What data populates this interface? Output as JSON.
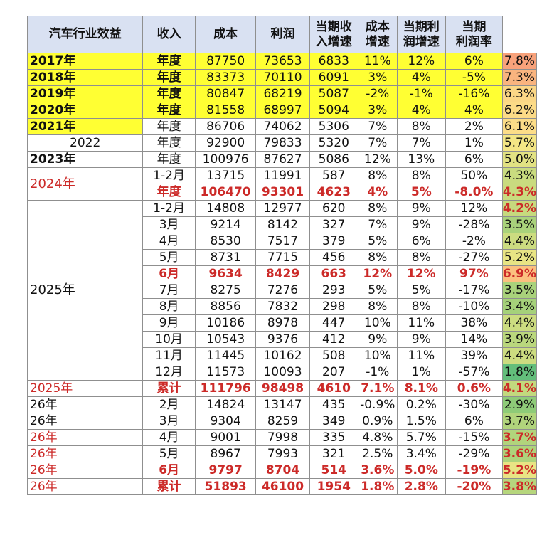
{
  "headers": [
    "汽车行业效益",
    "收入",
    "成本",
    "利润",
    "当期收入增速",
    "成本增速",
    "当期利润增速",
    "当期利润率"
  ],
  "header_lines": [
    [
      "汽车行业效益"
    ],
    [
      "收入"
    ],
    [
      "成本"
    ],
    [
      "利润"
    ],
    [
      "当期收",
      "入增速"
    ],
    [
      "成本",
      "增速"
    ],
    [
      "当期利",
      "润增速"
    ],
    [
      "当期",
      "利润率"
    ]
  ],
  "rows": [
    {
      "year": "2017年",
      "period": "年度",
      "revenue": "87750",
      "cost": "73653",
      "profit": "6833",
      "rev_growth": "11%",
      "cost_growth": "12%",
      "profit_growth": "6%",
      "margin": "7.8%",
      "style": "hl",
      "yearStyle": "hl",
      "marginColor": "#f8a27b"
    },
    {
      "year": "2018年",
      "period": "年度",
      "revenue": "83373",
      "cost": "70110",
      "profit": "6091",
      "rev_growth": "3%",
      "cost_growth": "4%",
      "profit_growth": "-5%",
      "margin": "7.3%",
      "style": "hl",
      "yearStyle": "hl",
      "marginColor": "#f9b47f"
    },
    {
      "year": "2019年",
      "period": "年度",
      "revenue": "80847",
      "cost": "68219",
      "profit": "5087",
      "rev_growth": "-2%",
      "cost_growth": "-1%",
      "profit_growth": "-16%",
      "margin": "6.3%",
      "style": "hl",
      "yearStyle": "hl",
      "marginColor": "#fbd786"
    },
    {
      "year": "2020年",
      "period": "年度",
      "revenue": "81558",
      "cost": "68997",
      "profit": "5094",
      "rev_growth": "3%",
      "cost_growth": "4%",
      "profit_growth": "4%",
      "margin": "6.2%",
      "style": "hl",
      "yearStyle": "hl",
      "marginColor": "#fcdb87"
    },
    {
      "year": "2021年",
      "period": "年度",
      "revenue": "86706",
      "cost": "74062",
      "profit": "5306",
      "rev_growth": "7%",
      "cost_growth": "8%",
      "profit_growth": "2%",
      "margin": "6.1%",
      "style": "",
      "yearStyle": "hl",
      "marginColor": "#fcdd88"
    },
    {
      "year": "2022",
      "period": "年度",
      "revenue": "92900",
      "cost": "79833",
      "profit": "5320",
      "rev_growth": "7%",
      "cost_growth": "7%",
      "profit_growth": "1%",
      "margin": "5.7%",
      "style": "",
      "yearStyle": "center",
      "marginColor": "#f4e685"
    },
    {
      "year": "2023年",
      "period": "年度",
      "revenue": "100976",
      "cost": "87627",
      "profit": "5086",
      "rev_growth": "12%",
      "cost_growth": "13%",
      "profit_growth": "6%",
      "margin": "5.0%",
      "style": "",
      "yearStyle": "",
      "marginColor": "#e2e283"
    },
    {
      "period": "1-2月",
      "revenue": "13715",
      "cost": "11991",
      "profit": "587",
      "rev_growth": "8%",
      "cost_growth": "8%",
      "profit_growth": "50%",
      "margin": "4.3%",
      "style": "",
      "marginColor": "#c9db7f"
    },
    {
      "period": "年度",
      "revenue": "106470",
      "cost": "93301",
      "profit": "4623",
      "rev_growth": "4%",
      "cost_growth": "5%",
      "profit_growth": "-8.0%",
      "margin": "4.3%",
      "style": "red",
      "marginColor": "#c9db7f"
    },
    {
      "period": "1-2月",
      "revenue": "14808",
      "cost": "12977",
      "profit": "620",
      "rev_growth": "8%",
      "cost_growth": "9%",
      "profit_growth": "12%",
      "margin": "4.2%",
      "style": "",
      "marginColor": "#c6da7e",
      "marginRed": true
    },
    {
      "period": "3月",
      "revenue": "9214",
      "cost": "8142",
      "profit": "327",
      "rev_growth": "7%",
      "cost_growth": "9%",
      "profit_growth": "-28%",
      "margin": "3.5%",
      "style": "",
      "marginColor": "#a9d27b"
    },
    {
      "period": "4月",
      "revenue": "8530",
      "cost": "7517",
      "profit": "379",
      "rev_growth": "5%",
      "cost_growth": "6%",
      "profit_growth": "-2%",
      "margin": "4.4%",
      "style": "",
      "marginColor": "#ccdc80"
    },
    {
      "period": "5月",
      "revenue": "8731",
      "cost": "7715",
      "profit": "456",
      "rev_growth": "8%",
      "cost_growth": "8%",
      "profit_growth": "-27%",
      "margin": "5.2%",
      "style": "",
      "marginColor": "#e8e484"
    },
    {
      "period": "6月",
      "revenue": "9634",
      "cost": "8429",
      "profit": "663",
      "rev_growth": "12%",
      "cost_growth": "12%",
      "profit_growth": "97%",
      "margin": "6.9%",
      "style": "red",
      "marginColor": "#fbc07f",
      "marginDark": true
    },
    {
      "period": "7月",
      "revenue": "8275",
      "cost": "7276",
      "profit": "293",
      "rev_growth": "5%",
      "cost_growth": "5%",
      "profit_growth": "-17%",
      "margin": "3.5%",
      "style": "",
      "marginColor": "#a9d27b"
    },
    {
      "period": "8月",
      "revenue": "8856",
      "cost": "7832",
      "profit": "298",
      "rev_growth": "8%",
      "cost_growth": "8%",
      "profit_growth": "-10%",
      "margin": "3.4%",
      "style": "",
      "marginColor": "#a5d17a"
    },
    {
      "period": "9月",
      "revenue": "10186",
      "cost": "8978",
      "profit": "447",
      "rev_growth": "10%",
      "cost_growth": "11%",
      "profit_growth": "38%",
      "margin": "4.4%",
      "style": "",
      "marginColor": "#ccdc80"
    },
    {
      "period": "10月",
      "revenue": "10543",
      "cost": "9376",
      "profit": "412",
      "rev_growth": "9%",
      "cost_growth": "9%",
      "profit_growth": "14%",
      "margin": "3.9%",
      "style": "",
      "marginColor": "#bad77d"
    },
    {
      "period": "11月",
      "revenue": "11445",
      "cost": "10162",
      "profit": "508",
      "rev_growth": "10%",
      "cost_growth": "11%",
      "profit_growth": "39%",
      "margin": "4.4%",
      "style": "",
      "marginColor": "#ccdc80"
    },
    {
      "period": "12月",
      "revenue": "11573",
      "cost": "10093",
      "profit": "207",
      "rev_growth": "-1%",
      "cost_growth": "1%",
      "profit_growth": "-57%",
      "margin": "1.8%",
      "style": "",
      "marginColor": "#63be7b"
    },
    {
      "year": "2025年",
      "period": "累计",
      "revenue": "111796",
      "cost": "98498",
      "profit": "4610",
      "rev_growth": "7.1%",
      "cost_growth": "8.1%",
      "profit_growth": "0.6%",
      "margin": "4.1%",
      "style": "red",
      "yearStyle": "redthin",
      "marginColor": "#c2d97e"
    },
    {
      "year": "26年",
      "period": "2月",
      "revenue": "14824",
      "cost": "13147",
      "profit": "435",
      "rev_growth": "-0.9%",
      "cost_growth": "0.2%",
      "profit_growth": "-30%",
      "margin": "2.9%",
      "style": "",
      "yearStyle": "",
      "marginColor": "#8ecb78"
    },
    {
      "year": "26年",
      "period": "3月",
      "revenue": "9304",
      "cost": "8259",
      "profit": "349",
      "rev_growth": "0.9%",
      "cost_growth": "1.5%",
      "profit_growth": "6%",
      "margin": "3.7%",
      "style": "",
      "yearStyle": "",
      "marginColor": "#b1d47c"
    },
    {
      "year": "26年",
      "period": "4月",
      "revenue": "9001",
      "cost": "7998",
      "profit": "335",
      "rev_growth": "4.8%",
      "cost_growth": "5.7%",
      "profit_growth": "-15%",
      "margin": "3.7%",
      "style": "",
      "yearStyle": "redthin",
      "marginColor": "#b1d47c",
      "marginRed": true
    },
    {
      "year": "26年",
      "period": "5月",
      "revenue": "8967",
      "cost": "7993",
      "profit": "321",
      "rev_growth": "2.5%",
      "cost_growth": "3.4%",
      "profit_growth": "-29%",
      "margin": "3.6%",
      "style": "",
      "yearStyle": "redthin",
      "marginColor": "#add37b",
      "marginRed": true
    },
    {
      "year": "26年",
      "period": "6月",
      "revenue": "9797",
      "cost": "8704",
      "profit": "514",
      "rev_growth": "3.6%",
      "cost_growth": "5.0%",
      "profit_growth": "-19%",
      "margin": "5.2%",
      "style": "red",
      "yearStyle": "redthin",
      "marginColor": "#e8e484"
    },
    {
      "year": "26年",
      "period": "累计",
      "revenue": "51893",
      "cost": "46100",
      "profit": "1954",
      "rev_growth": "1.8%",
      "cost_growth": "2.8%",
      "profit_growth": "-20%",
      "margin": "3.8%",
      "style": "red",
      "yearStyle": "redthin",
      "marginColor": "#b6d67d"
    }
  ],
  "groups": [
    {
      "label": "2024年",
      "startRow": 7,
      "span": 2
    },
    {
      "label": "2025年",
      "startRow": 9,
      "span": 11
    }
  ]
}
